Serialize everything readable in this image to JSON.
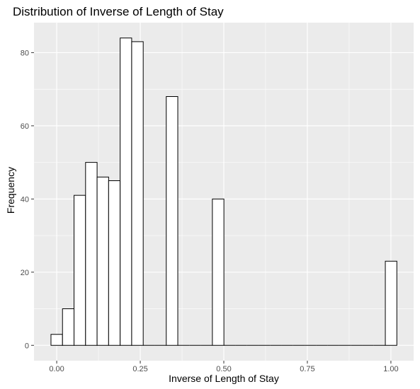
{
  "chart_data": {
    "type": "bar",
    "title": "Distribution of Inverse of Length of Stay",
    "xlabel": "Inverse of Length of Stay",
    "ylabel": "Frequency",
    "xlim": [
      -0.068,
      1.068
    ],
    "ylim": [
      -4.2,
      88.2
    ],
    "x_ticks": [
      0.0,
      0.25,
      0.5,
      0.75,
      1.0
    ],
    "x_tick_labels": [
      "0.00",
      "0.25",
      "0.50",
      "0.75",
      "1.00"
    ],
    "y_ticks": [
      0,
      20,
      40,
      60,
      80
    ],
    "y_tick_labels": [
      "0",
      "20",
      "40",
      "60",
      "80"
    ],
    "bin_width": 0.0345,
    "bin_start": -0.0172,
    "values": [
      3,
      10,
      41,
      50,
      46,
      45,
      84,
      83,
      0,
      0,
      68,
      0,
      0,
      0,
      40,
      0,
      0,
      0,
      0,
      0,
      0,
      0,
      0,
      0,
      0,
      0,
      0,
      0,
      0,
      23
    ],
    "grid": true,
    "legend": "none",
    "colors": {
      "panel": "#ebebeb",
      "grid_major": "#ffffff",
      "bar_fill": "#ffffff",
      "bar_stroke": "#000000"
    }
  }
}
